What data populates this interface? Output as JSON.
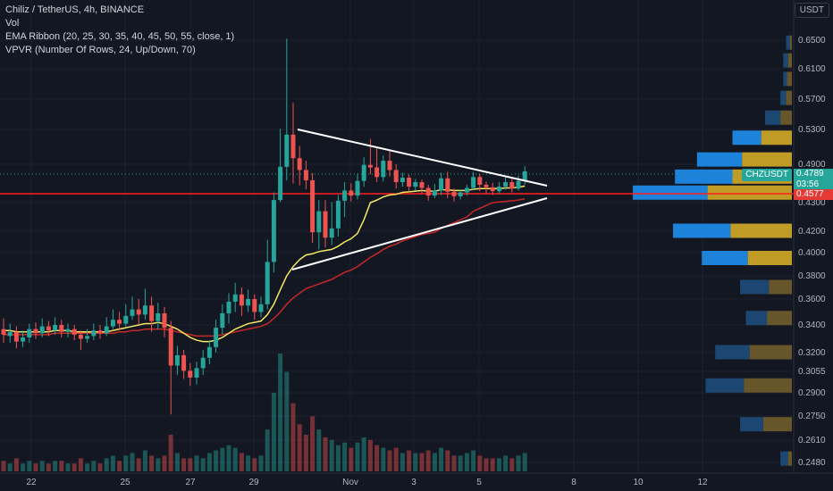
{
  "legend": {
    "symbol": "Chiliz / TetherUS, 4h, BINANCE",
    "vol": "Vol",
    "ema": "EMA Ribbon (20, 25, 30, 35, 40, 45, 50, 55, close, 1)",
    "vpvr": "VPVR (Number Of Rows, 24, Up/Down, 70)"
  },
  "currency": "USDT",
  "ticker_label": "CHZUSDT",
  "last_price": "0.4789",
  "countdown": "03:56",
  "horizontal_line_price": "0.4577",
  "colors": {
    "up": "#26a69a",
    "down": "#ef5350",
    "red_line": "#ff1e1e",
    "ema_fast": "#f5e663",
    "ema_slow": "#c62828"
  },
  "chart_data": {
    "type": "candlestick",
    "y_axis_ticks": [
      "0.6500",
      "0.6100",
      "0.5700",
      "0.5300",
      "0.4900",
      "0.4577",
      "0.4300",
      "0.4200",
      "0.4000",
      "0.3800",
      "0.3600",
      "0.3400",
      "0.3200",
      "0.3055",
      "0.2900",
      "0.2750",
      "0.2610",
      "0.2480"
    ],
    "x_axis_ticks": [
      "22",
      "25",
      "27",
      "29",
      "Nov",
      "3",
      "5",
      "8",
      "10",
      "12"
    ],
    "price_range": [
      0.245,
      0.655
    ],
    "candles": [
      [
        0.337,
        0.333,
        0.345,
        0.327
      ],
      [
        0.332,
        0.335,
        0.341,
        0.327
      ],
      [
        0.335,
        0.328,
        0.339,
        0.323
      ],
      [
        0.328,
        0.331,
        0.336,
        0.324
      ],
      [
        0.331,
        0.337,
        0.341,
        0.327
      ],
      [
        0.337,
        0.334,
        0.342,
        0.33
      ],
      [
        0.334,
        0.339,
        0.345,
        0.331
      ],
      [
        0.339,
        0.336,
        0.343,
        0.332
      ],
      [
        0.336,
        0.34,
        0.346,
        0.333
      ],
      [
        0.34,
        0.335,
        0.344,
        0.331
      ],
      [
        0.335,
        0.337,
        0.341,
        0.331
      ],
      [
        0.337,
        0.333,
        0.34,
        0.329
      ],
      [
        0.333,
        0.33,
        0.336,
        0.322
      ],
      [
        0.33,
        0.332,
        0.337,
        0.327
      ],
      [
        0.332,
        0.336,
        0.341,
        0.329
      ],
      [
        0.336,
        0.334,
        0.34,
        0.33
      ],
      [
        0.334,
        0.339,
        0.346,
        0.332
      ],
      [
        0.339,
        0.344,
        0.352,
        0.337
      ],
      [
        0.344,
        0.341,
        0.35,
        0.336
      ],
      [
        0.341,
        0.347,
        0.356,
        0.339
      ],
      [
        0.347,
        0.352,
        0.362,
        0.344
      ],
      [
        0.352,
        0.348,
        0.36,
        0.34
      ],
      [
        0.348,
        0.355,
        0.369,
        0.344
      ],
      [
        0.355,
        0.343,
        0.362,
        0.335
      ],
      [
        0.343,
        0.349,
        0.357,
        0.337
      ],
      [
        0.349,
        0.338,
        0.354,
        0.331
      ],
      [
        0.338,
        0.31,
        0.343,
        0.276
      ],
      [
        0.31,
        0.318,
        0.325,
        0.303
      ],
      [
        0.318,
        0.306,
        0.322,
        0.3
      ],
      [
        0.306,
        0.301,
        0.312,
        0.295
      ],
      [
        0.301,
        0.308,
        0.313,
        0.296
      ],
      [
        0.308,
        0.316,
        0.322,
        0.303
      ],
      [
        0.316,
        0.324,
        0.329,
        0.311
      ],
      [
        0.324,
        0.338,
        0.344,
        0.32
      ],
      [
        0.338,
        0.349,
        0.356,
        0.333
      ],
      [
        0.349,
        0.358,
        0.365,
        0.341
      ],
      [
        0.358,
        0.364,
        0.374,
        0.35
      ],
      [
        0.364,
        0.355,
        0.37,
        0.347
      ],
      [
        0.355,
        0.36,
        0.368,
        0.35
      ],
      [
        0.36,
        0.35,
        0.364,
        0.344
      ],
      [
        0.35,
        0.356,
        0.362,
        0.346
      ],
      [
        0.356,
        0.392,
        0.412,
        0.352
      ],
      [
        0.392,
        0.434,
        0.446,
        0.383
      ],
      [
        0.434,
        0.486,
        0.531,
        0.431
      ],
      [
        0.486,
        0.524,
        0.652,
        0.465
      ],
      [
        0.524,
        0.497,
        0.565,
        0.46
      ],
      [
        0.497,
        0.481,
        0.511,
        0.457
      ],
      [
        0.481,
        0.465,
        0.494,
        0.451
      ],
      [
        0.465,
        0.419,
        0.476,
        0.409
      ],
      [
        0.419,
        0.427,
        0.434,
        0.403
      ],
      [
        0.427,
        0.414,
        0.434,
        0.405
      ],
      [
        0.414,
        0.421,
        0.431,
        0.407
      ],
      [
        0.421,
        0.433,
        0.442,
        0.415
      ],
      [
        0.433,
        0.449,
        0.462,
        0.425
      ],
      [
        0.449,
        0.441,
        0.46,
        0.432
      ],
      [
        0.441,
        0.464,
        0.475,
        0.435
      ],
      [
        0.464,
        0.489,
        0.498,
        0.455
      ],
      [
        0.489,
        0.485,
        0.519,
        0.474
      ],
      [
        0.485,
        0.47,
        0.51,
        0.462
      ],
      [
        0.47,
        0.494,
        0.5,
        0.463
      ],
      [
        0.494,
        0.481,
        0.505,
        0.471
      ],
      [
        0.481,
        0.462,
        0.49,
        0.452
      ],
      [
        0.462,
        0.469,
        0.477,
        0.455
      ],
      [
        0.469,
        0.455,
        0.474,
        0.447
      ],
      [
        0.455,
        0.462,
        0.467,
        0.449
      ],
      [
        0.462,
        0.453,
        0.466,
        0.444
      ],
      [
        0.453,
        0.441,
        0.458,
        0.433
      ],
      [
        0.441,
        0.449,
        0.459,
        0.437
      ],
      [
        0.449,
        0.468,
        0.477,
        0.442
      ],
      [
        0.468,
        0.447,
        0.478,
        0.437
      ],
      [
        0.447,
        0.44,
        0.452,
        0.432
      ],
      [
        0.44,
        0.446,
        0.451,
        0.435
      ],
      [
        0.446,
        0.453,
        0.458,
        0.441
      ],
      [
        0.453,
        0.47,
        0.478,
        0.449
      ],
      [
        0.47,
        0.458,
        0.475,
        0.448
      ],
      [
        0.458,
        0.454,
        0.463,
        0.444
      ],
      [
        0.454,
        0.448,
        0.461,
        0.442
      ],
      [
        0.448,
        0.455,
        0.462,
        0.444
      ],
      [
        0.455,
        0.462,
        0.47,
        0.45
      ],
      [
        0.462,
        0.452,
        0.469,
        0.446
      ],
      [
        0.452,
        0.464,
        0.472,
        0.449
      ],
      [
        0.464,
        0.479,
        0.487,
        0.458
      ]
    ],
    "volumes": [
      4,
      3,
      5,
      3,
      4,
      3,
      4,
      3,
      4,
      4,
      3,
      3,
      5,
      3,
      4,
      3,
      5,
      6,
      4,
      6,
      7,
      5,
      8,
      6,
      5,
      6,
      14,
      7,
      5,
      5,
      6,
      5,
      7,
      8,
      9,
      10,
      9,
      7,
      6,
      5,
      6,
      16,
      30,
      45,
      38,
      26,
      18,
      14,
      21,
      16,
      13,
      12,
      10,
      11,
      9,
      11,
      13,
      12,
      10,
      9,
      8,
      9,
      7,
      8,
      7,
      7,
      8,
      7,
      9,
      8,
      6,
      6,
      7,
      8,
      6,
      5,
      5,
      5,
      6,
      5,
      6,
      7
    ],
    "ema_fast": [
      0.336,
      0.336,
      0.335,
      0.335,
      0.335,
      0.335,
      0.335,
      0.335,
      0.336,
      0.336,
      0.336,
      0.335,
      0.335,
      0.335,
      0.335,
      0.335,
      0.335,
      0.336,
      0.337,
      0.338,
      0.339,
      0.34,
      0.341,
      0.341,
      0.342,
      0.341,
      0.339,
      0.337,
      0.334,
      0.331,
      0.329,
      0.328,
      0.328,
      0.329,
      0.331,
      0.334,
      0.337,
      0.339,
      0.341,
      0.342,
      0.343,
      0.348,
      0.356,
      0.368,
      0.38,
      0.388,
      0.394,
      0.398,
      0.399,
      0.401,
      0.402,
      0.403,
      0.406,
      0.41,
      0.413,
      0.418,
      0.424,
      0.43,
      0.434,
      0.439,
      0.442,
      0.443,
      0.446,
      0.447,
      0.448,
      0.449,
      0.448,
      0.448,
      0.45,
      0.45,
      0.449,
      0.449,
      0.449,
      0.451,
      0.452,
      0.452,
      0.452,
      0.452,
      0.453,
      0.453,
      0.454,
      0.456
    ],
    "ema_slow": [
      0.333,
      0.333,
      0.333,
      0.333,
      0.333,
      0.333,
      0.333,
      0.333,
      0.334,
      0.334,
      0.334,
      0.334,
      0.334,
      0.334,
      0.334,
      0.334,
      0.334,
      0.334,
      0.335,
      0.335,
      0.336,
      0.336,
      0.337,
      0.337,
      0.337,
      0.337,
      0.336,
      0.335,
      0.334,
      0.333,
      0.332,
      0.332,
      0.332,
      0.332,
      0.333,
      0.334,
      0.335,
      0.336,
      0.337,
      0.338,
      0.339,
      0.341,
      0.345,
      0.35,
      0.356,
      0.361,
      0.365,
      0.369,
      0.371,
      0.373,
      0.375,
      0.377,
      0.38,
      0.383,
      0.385,
      0.388,
      0.392,
      0.396,
      0.399,
      0.403,
      0.406,
      0.408,
      0.411,
      0.413,
      0.415,
      0.417,
      0.418,
      0.419,
      0.421,
      0.422,
      0.423,
      0.424,
      0.425,
      0.427,
      0.428,
      0.429,
      0.43,
      0.431,
      0.432,
      0.433,
      0.434,
      0.436
    ],
    "volume_profile": [
      [
        0.646,
        4,
        2
      ],
      [
        0.621,
        5,
        4
      ],
      [
        0.596,
        4,
        5
      ],
      [
        0.571,
        6,
        6
      ],
      [
        0.545,
        16,
        12
      ],
      [
        0.52,
        30,
        32
      ],
      [
        0.495,
        47,
        52
      ],
      [
        0.47,
        60,
        62
      ],
      [
        0.445,
        78,
        88
      ],
      [
        0.42,
        60,
        64
      ],
      [
        0.395,
        48,
        46
      ],
      [
        0.37,
        30,
        24
      ],
      [
        0.345,
        22,
        26
      ],
      [
        0.32,
        36,
        44
      ],
      [
        0.295,
        40,
        50
      ],
      [
        0.27,
        24,
        30
      ],
      [
        0.25,
        8,
        4
      ]
    ],
    "triangle": {
      "upper": [
        [
          43,
          0.526
        ],
        [
          84,
          0.48
        ]
      ],
      "lower": [
        [
          41,
          0.389
        ],
        [
          84,
          0.455
        ]
      ]
    }
  }
}
